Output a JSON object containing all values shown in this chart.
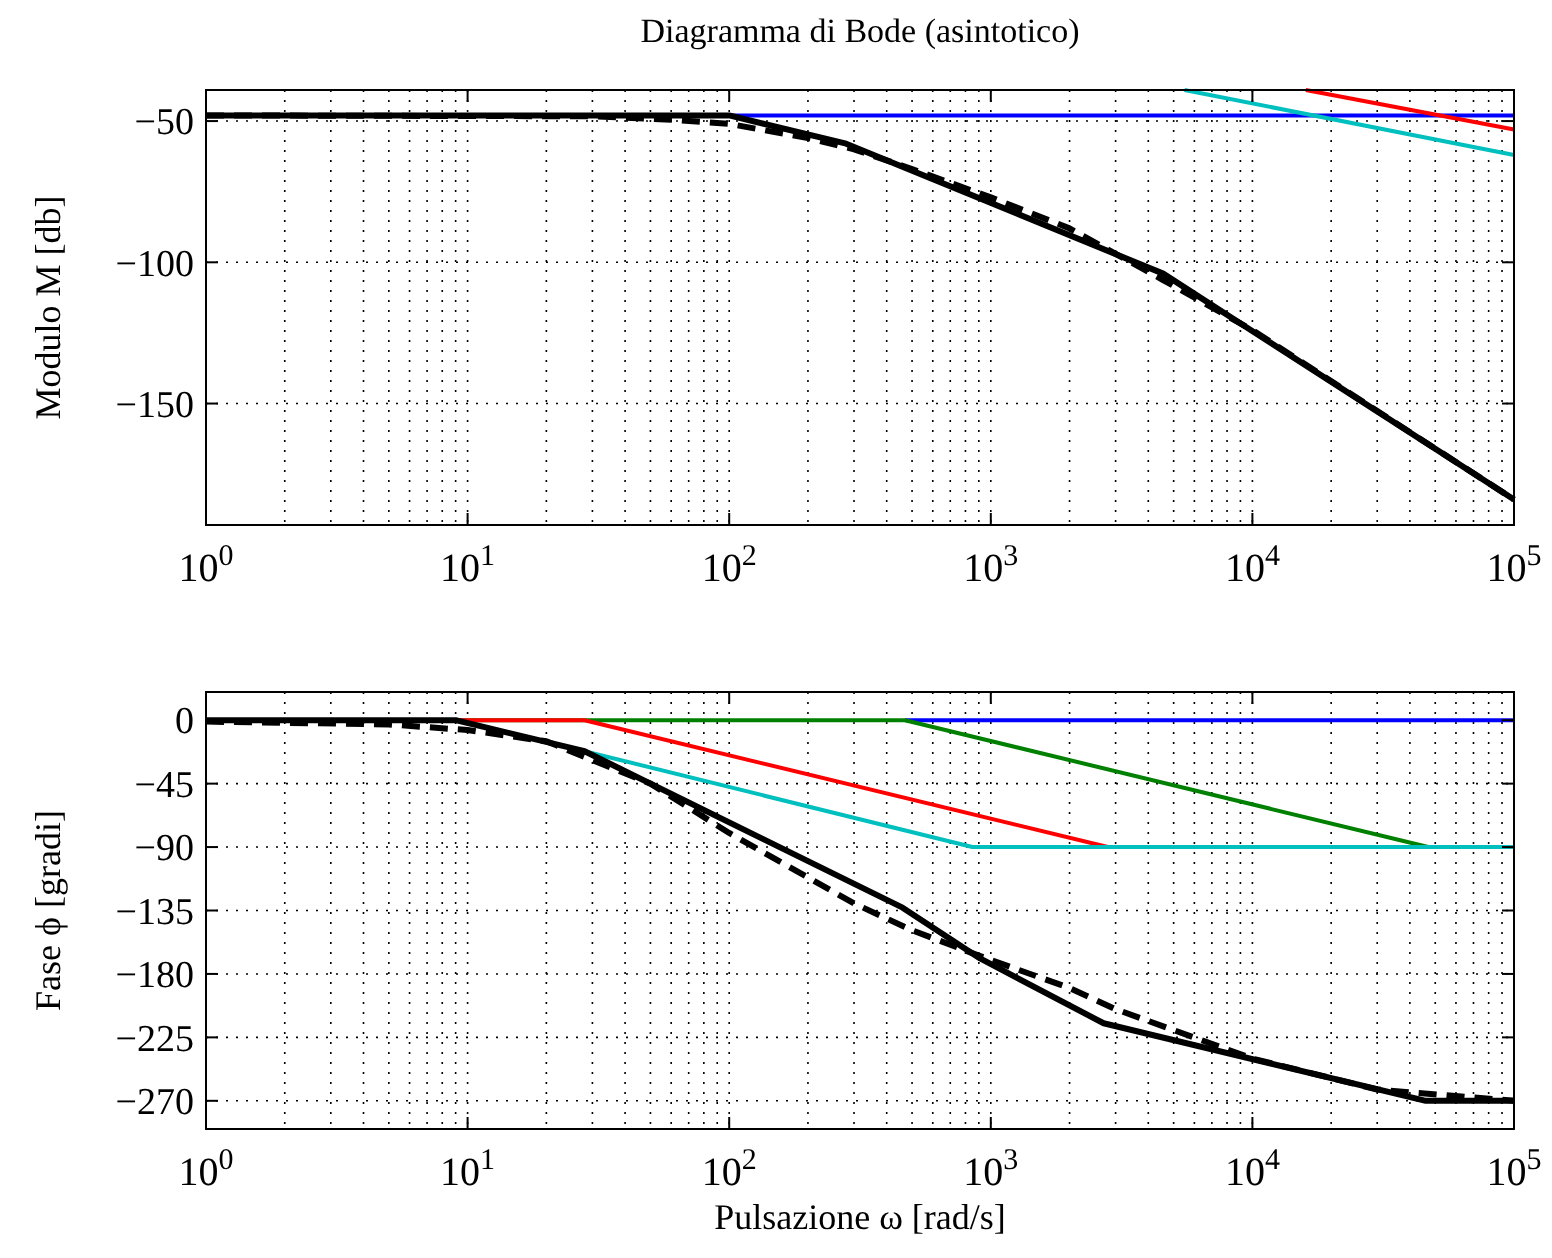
{
  "chart_data": [
    {
      "type": "line",
      "title": "Diagramma di Bode (asintotico)",
      "ylabel": "Modulo M [db]",
      "log": "x",
      "grid": true,
      "xlim": [
        1,
        100000
      ],
      "xticks": [
        {
          "value": 1,
          "label": "10$^{0}$"
        },
        {
          "value": 10,
          "label": "10$^{1}$"
        },
        {
          "value": 100,
          "label": "10$^{2}$"
        },
        {
          "value": 1000,
          "label": "10$^{3}$"
        },
        {
          "value": 10000,
          "label": "10$^{4}$"
        },
        {
          "value": 100000,
          "label": "10$^{5}$"
        }
      ],
      "ylim": [
        -193,
        -39
      ],
      "yticks": [
        -150,
        -100,
        -50
      ],
      "series": [
        {
          "color": "#0000ff",
          "x": [
            100,
            100000
          ],
          "values": [
            -48,
            -48
          ]
        },
        {
          "color": "#00bfbf",
          "x": [
            5500,
            100000
          ],
          "values": [
            -39,
            -62
          ]
        },
        {
          "color": "#ff0000",
          "x": [
            16000,
            100000
          ],
          "values": [
            -39,
            -53
          ]
        },
        {
          "color": "#000000",
          "x": [
            1,
            100,
            280,
            4560,
            100000
          ],
          "values": [
            -48,
            -48,
            -58,
            -104,
            -184
          ]
        },
        {
          "color": "#000000",
          "line_style": "dashed",
          "x": [
            1,
            30,
            60,
            100,
            200,
            300,
            500,
            1000,
            2000,
            4500,
            10000,
            100000
          ],
          "values": [
            -48,
            -48.3,
            -49.5,
            -51,
            -56,
            -60,
            -67,
            -77,
            -88,
            -106,
            -124,
            -184
          ]
        }
      ]
    },
    {
      "type": "line",
      "xlabel": "Pulsazione ω [rad/s]",
      "ylabel": "Fase ϕ [gradi]",
      "log": "x",
      "grid": true,
      "xlim": [
        1,
        100000
      ],
      "xticks": [
        {
          "value": 1,
          "label": "10$^{0}$"
        },
        {
          "value": 10,
          "label": "10$^{1}$"
        },
        {
          "value": 100,
          "label": "10$^{2}$"
        },
        {
          "value": 1000,
          "label": "10$^{3}$"
        },
        {
          "value": 10000,
          "label": "10$^{4}$"
        },
        {
          "value": 100000,
          "label": "10$^{5}$"
        }
      ],
      "ylim": [
        -290,
        20
      ],
      "yticks": [
        -270,
        -225,
        -180,
        -135,
        -90,
        -45,
        0
      ],
      "series": [
        {
          "color": "#0000ff",
          "x": [
            470,
            100000
          ],
          "values": [
            0,
            0
          ]
        },
        {
          "color": "#008000",
          "x": [
            1,
            470,
            47000,
            100000
          ],
          "values": [
            0,
            0,
            -90,
            -90
          ]
        },
        {
          "color": "#ff0000",
          "x": [
            9,
            28,
            2800
          ],
          "values": [
            0,
            0,
            -90
          ]
        },
        {
          "color": "#00bfbf",
          "x": [
            28,
            850,
            100000
          ],
          "values": [
            -22,
            -90,
            -90
          ]
        },
        {
          "color": "#000000",
          "x": [
            1,
            9,
            28,
            460,
            910,
            2700,
            46000,
            100000
          ],
          "values": [
            0,
            0,
            -22,
            -133,
            -169,
            -215,
            -270,
            -270
          ]
        },
        {
          "color": "#000000",
          "line_style": "dashed",
          "x": [
            1,
            5,
            10,
            20,
            50,
            100,
            300,
            500,
            900,
            2000,
            3000,
            10000,
            30000,
            100000
          ],
          "values": [
            -1,
            -3,
            -7,
            -15,
            -45,
            -80,
            -130,
            -149,
            -167,
            -190,
            -205,
            -240,
            -262,
            -270
          ]
        }
      ]
    }
  ]
}
